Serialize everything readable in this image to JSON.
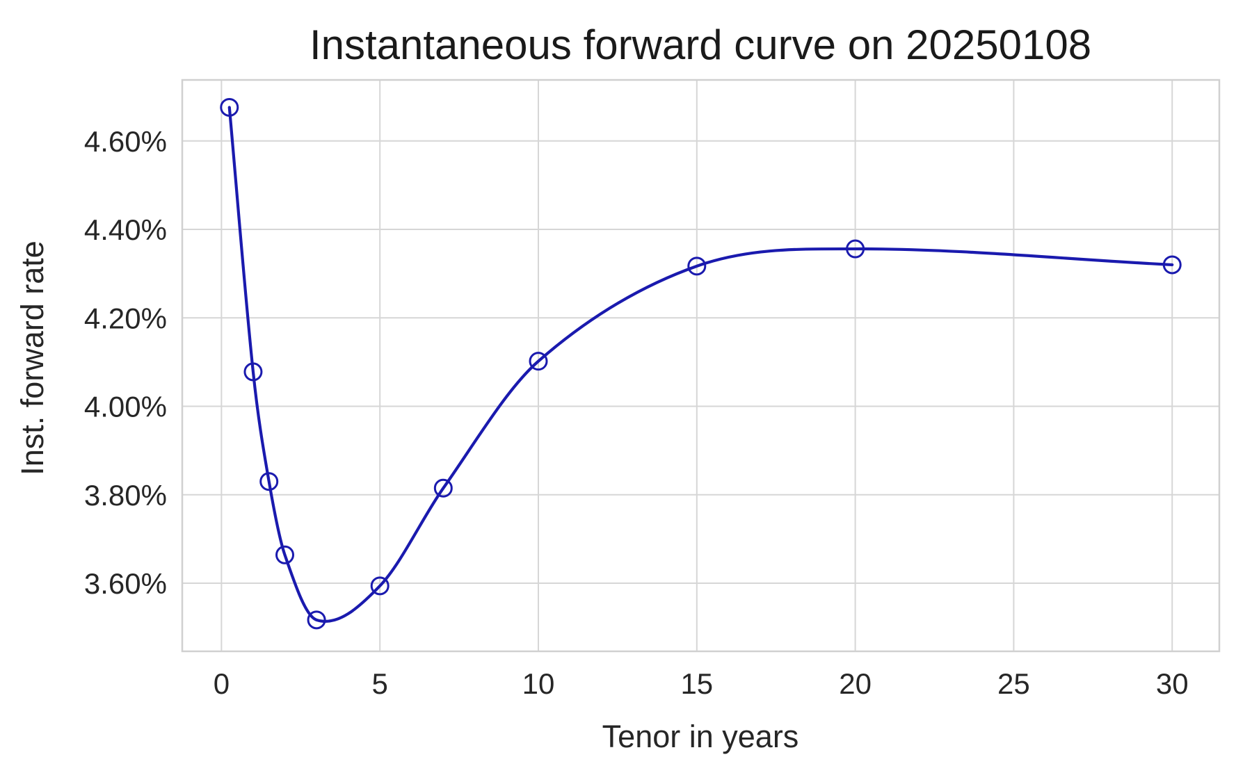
{
  "title": "Instantaneous forward curve on 20250108",
  "chart_data": {
    "type": "line",
    "title": "Instantaneous forward curve on 20250108",
    "xlabel": "Tenor in years",
    "ylabel": "Inst. forward rate",
    "x": [
      0.25,
      1,
      1.5,
      2,
      3,
      5,
      7,
      10,
      15,
      20,
      30
    ],
    "y": [
      4.676,
      4.078,
      3.83,
      3.664,
      3.517,
      3.594,
      3.815,
      4.102,
      4.317,
      4.356,
      4.32
    ],
    "y_unit": "%",
    "xlim": [
      -1.2375,
      31.4875
    ],
    "ylim": [
      3.446,
      4.738
    ],
    "x_ticks": [
      0,
      5,
      10,
      15,
      20,
      25,
      30
    ],
    "y_ticks": [
      3.6,
      3.8,
      4.0,
      4.2,
      4.4,
      4.6
    ],
    "y_tick_suffix": "%",
    "grid": true,
    "legend": false,
    "interpolation": "smooth",
    "marker": "open-circle",
    "line_color": "#1a1aae",
    "marker_color": "#1a1aae",
    "grid_color": "#d6d6d6",
    "spine_color": "#d0d0d0",
    "text_color": "#262626",
    "background_color": "#ffffff"
  }
}
